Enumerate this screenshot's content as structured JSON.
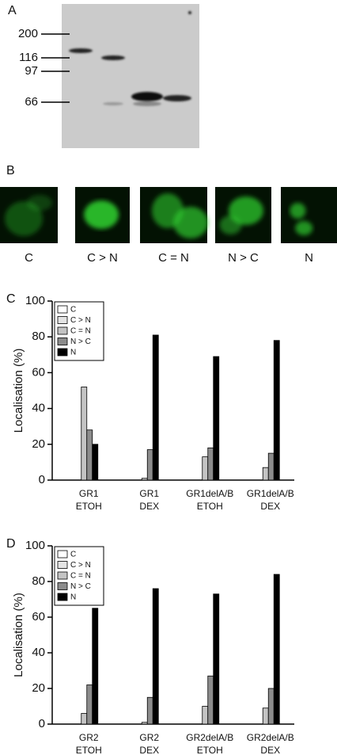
{
  "panel_a": {
    "label": "A",
    "markers": [
      "200",
      "116",
      "97",
      "66"
    ]
  },
  "panel_b": {
    "label": "B",
    "images": [
      "C",
      "C > N",
      "C = N",
      "N > C",
      "N"
    ]
  },
  "chart_data": [
    {
      "type": "bar",
      "panel": "C",
      "y_label": "Localisation (%)",
      "categories": [
        [
          "GR1",
          "ETOH"
        ],
        [
          "GR1",
          "DEX"
        ],
        [
          "GR1delA/B",
          "ETOH"
        ],
        [
          "GR1delA/B",
          "DEX"
        ]
      ],
      "series": [
        {
          "name": "C",
          "color": "#ffffff",
          "values": [
            0,
            0,
            0,
            0
          ]
        },
        {
          "name": "C > N",
          "color": "#e4e4e4",
          "values": [
            0,
            0,
            0,
            0
          ]
        },
        {
          "name": "C = N",
          "color": "#c4c4c4",
          "values": [
            52,
            1,
            13,
            7
          ]
        },
        {
          "name": "N > C",
          "color": "#8c8c8c",
          "values": [
            28,
            17,
            18,
            15
          ]
        },
        {
          "name": "N",
          "color": "#000000",
          "values": [
            20,
            81,
            69,
            78
          ]
        }
      ],
      "ylim": [
        0,
        100
      ],
      "yticks": [
        0,
        20,
        40,
        60,
        80,
        100
      ],
      "legend": "upper-left"
    },
    {
      "type": "bar",
      "panel": "D",
      "y_label": "Localisation (%)",
      "categories": [
        [
          "GR2",
          "ETOH"
        ],
        [
          "GR2",
          "DEX"
        ],
        [
          "GR2delA/B",
          "ETOH"
        ],
        [
          "GR2delA/B",
          "DEX"
        ]
      ],
      "series": [
        {
          "name": "C",
          "color": "#ffffff",
          "values": [
            0,
            0,
            0,
            0
          ]
        },
        {
          "name": "C > N",
          "color": "#e4e4e4",
          "values": [
            0,
            0,
            0,
            0
          ]
        },
        {
          "name": "C = N",
          "color": "#c4c4c4",
          "values": [
            6,
            1,
            10,
            9
          ]
        },
        {
          "name": "N > C",
          "color": "#8c8c8c",
          "values": [
            22,
            15,
            27,
            20
          ]
        },
        {
          "name": "N",
          "color": "#000000",
          "values": [
            65,
            76,
            73,
            84
          ]
        }
      ],
      "ylim": [
        0,
        100
      ],
      "yticks": [
        0,
        20,
        40,
        60,
        80,
        100
      ],
      "legend": "upper-left"
    }
  ]
}
